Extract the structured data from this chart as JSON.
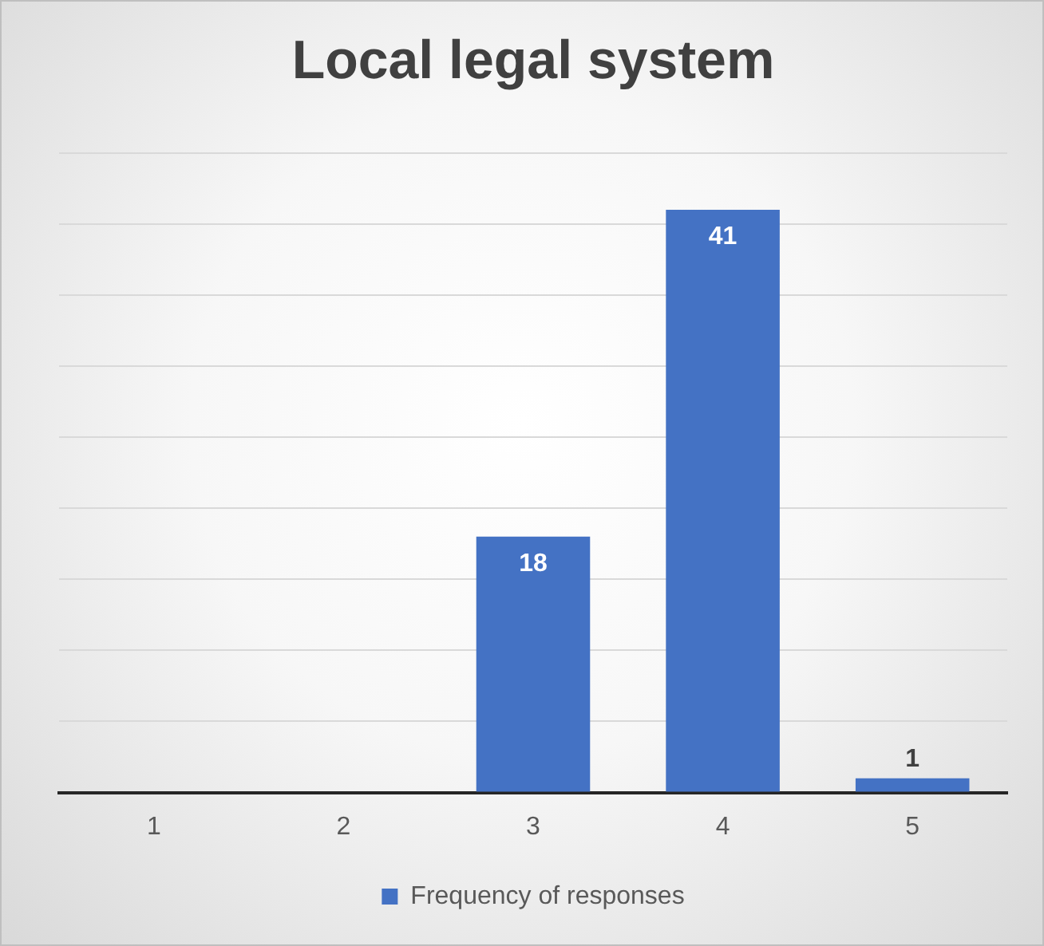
{
  "chart_data": {
    "type": "bar",
    "title": "Local legal system",
    "categories": [
      "1",
      "2",
      "3",
      "4",
      "5"
    ],
    "series": [
      {
        "name": "Frequency of responses",
        "color": "#4472c4",
        "values": [
          0,
          0,
          18,
          41,
          1
        ],
        "value_labels": [
          null,
          null,
          "18",
          "41",
          "1"
        ]
      }
    ],
    "ylim": [
      0,
      45
    ],
    "yticks": [
      {
        "value": 0,
        "label": null
      },
      {
        "value": 5,
        "label": null
      },
      {
        "value": 10,
        "label": null
      },
      {
        "value": 15,
        "label": null
      },
      {
        "value": 20,
        "label": null
      },
      {
        "value": 25,
        "label": null
      },
      {
        "value": 30,
        "label": null
      },
      {
        "value": 35,
        "label": null
      },
      {
        "value": 40,
        "label": null
      },
      {
        "value": 45,
        "label": null
      }
    ],
    "tick_labels": "x",
    "grid": "y",
    "legend": "bottom"
  }
}
